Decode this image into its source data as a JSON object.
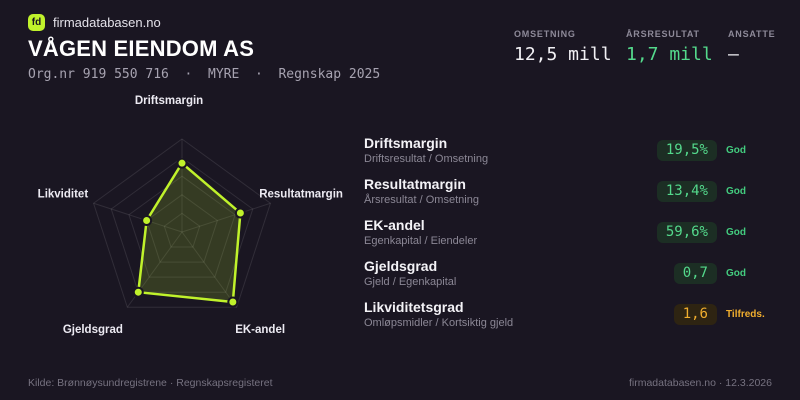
{
  "brand": {
    "logo_text": "fd",
    "site": "firmadatabasen.no"
  },
  "header": {
    "company": "VÅGEN EIENDOM AS",
    "meta": "Org.nr 919 550 716  ·  MYRE  ·  Regnskap 2025"
  },
  "kpis": [
    {
      "label": "OMSETNING",
      "value": "12,5 mill",
      "tone": "plain"
    },
    {
      "label": "ÅRSRESULTAT",
      "value": "1,7 mill",
      "tone": "green"
    },
    {
      "label": "ANSATTE",
      "value": "–",
      "tone": "plain"
    }
  ],
  "chart_data": {
    "type": "radar",
    "categories": [
      "Driftsmargin",
      "Resultatmargin",
      "EK-andel",
      "Gjeldsgrad",
      "Likviditet"
    ],
    "values": [
      0.74,
      0.66,
      0.93,
      0.8,
      0.4
    ],
    "value_range": [
      0,
      1
    ],
    "grid_levels": 5,
    "grid": "pentagon rings with radial spokes",
    "legend": "none",
    "metric_values": {
      "Driftsmargin": "19,5%",
      "Resultatmargin": "13,4%",
      "EK-andel": "59,6%",
      "Gjeldsgrad": "0,7",
      "Likviditet (Likviditetsgrad)": "1,6"
    },
    "line_color": "#c0f22b",
    "fill_color": "rgba(192,242,43,0.17)",
    "point_color": "#c0f22b",
    "grid_color": "rgba(255,255,255,0.10)",
    "label_color": "#eceaf2"
  },
  "metrics": [
    {
      "title": "Driftsmargin",
      "formula": "Driftsresultat / Omsetning",
      "value": "19,5%",
      "status": "God",
      "tone": "good"
    },
    {
      "title": "Resultatmargin",
      "formula": "Årsresultat / Omsetning",
      "value": "13,4%",
      "status": "God",
      "tone": "good"
    },
    {
      "title": "EK-andel",
      "formula": "Egenkapital / Eiendeler",
      "value": "59,6%",
      "status": "God",
      "tone": "good"
    },
    {
      "title": "Gjeldsgrad",
      "formula": "Gjeld / Egenkapital",
      "value": "0,7",
      "status": "God",
      "tone": "good"
    },
    {
      "title": "Likviditetsgrad",
      "formula": "Omløpsmidler / Kortsiktig gjeld",
      "value": "1,6",
      "status": "Tilfreds.",
      "tone": "warn"
    }
  ],
  "footer": {
    "left": "Kilde: Brønnøysundregistrene · Regnskapsregisteret",
    "right": "firmadatabasen.no · 12.3.2026"
  },
  "colors": {
    "background": "#1a1622",
    "accent_lime": "#c0f22b",
    "status_good": "#54d98c",
    "status_warn": "#f1ae2e"
  }
}
